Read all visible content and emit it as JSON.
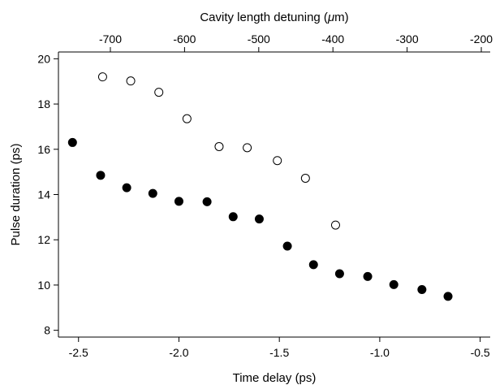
{
  "chart_data": {
    "type": "scatter",
    "title": "",
    "xlabel": "Time delay (ps)",
    "x2label_prefix": "Cavity length detuning (",
    "x2label_mu": "μ",
    "x2label_suffix": "m)",
    "ylabel": "Pulse duration (ps)",
    "xlim": [
      -2.6,
      -0.45
    ],
    "ylim": [
      7.7,
      20.3
    ],
    "x2lim": [
      -770,
      -188
    ],
    "xticks": [
      -2.5,
      -2.0,
      -1.5,
      -1.0,
      -0.5
    ],
    "xtick_labels": [
      "-2.5",
      "-2.0",
      "-1.5",
      "-1.0",
      "-0.5"
    ],
    "x2ticks": [
      -700,
      -600,
      -500,
      -400,
      -300,
      -200
    ],
    "x2tick_labels": [
      "-700",
      "-600",
      "-500",
      "-400",
      "-300",
      "-200"
    ],
    "yticks": [
      8,
      10,
      12,
      14,
      16,
      18,
      20
    ],
    "ytick_labels": [
      "8",
      "10",
      "12",
      "14",
      "16",
      "18",
      "20"
    ],
    "grid": false,
    "series": [
      {
        "marker": "filled-circle",
        "x": [
          -2.53,
          -2.39,
          -2.26,
          -2.13,
          -2.0,
          -1.86,
          -1.73,
          -1.6,
          -1.46,
          -1.33,
          -1.2,
          -1.06,
          -0.93,
          -0.79,
          -0.66
        ],
        "y": [
          16.3,
          14.85,
          14.3,
          14.05,
          13.7,
          13.68,
          13.02,
          12.92,
          11.72,
          10.9,
          10.5,
          10.38,
          10.02,
          9.8,
          9.5
        ]
      },
      {
        "marker": "open-circle",
        "x": [
          -2.38,
          -2.24,
          -2.1,
          -1.96,
          -1.8,
          -1.66,
          -1.51,
          -1.37,
          -1.22
        ],
        "y": [
          19.2,
          19.02,
          18.52,
          17.35,
          16.12,
          16.07,
          15.5,
          14.72,
          12.65
        ]
      }
    ]
  },
  "colors": {
    "marker": "#000000",
    "open_fill": "#ffffff"
  }
}
